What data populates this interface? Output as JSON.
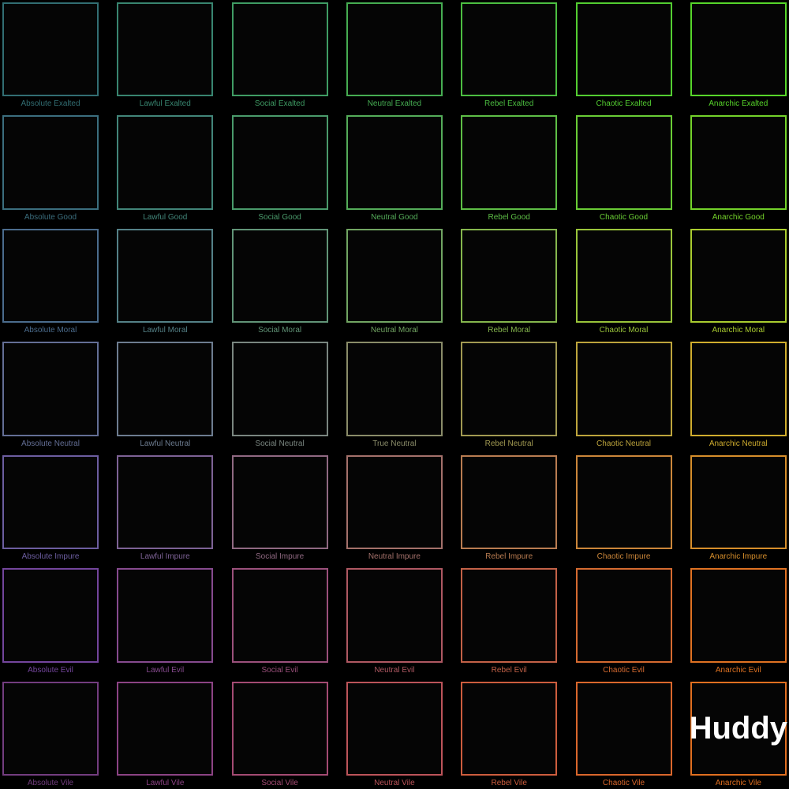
{
  "page": {
    "background": "#000000",
    "watermark_color": "#ffffff"
  },
  "grid": {
    "cells": [
      {
        "label": "Absolute Exalted",
        "color": "#326e73"
      },
      {
        "label": "Lawful Exalted",
        "color": "#388570"
      },
      {
        "label": "Social Exalted",
        "color": "#3f9c64"
      },
      {
        "label": "Neutral Exalted",
        "color": "#46ad52"
      },
      {
        "label": "Rebel Exalted",
        "color": "#4cbe41"
      },
      {
        "label": "Chaotic Exalted",
        "color": "#53cd31"
      },
      {
        "label": "Anarchic Exalted",
        "color": "#57d62a"
      },
      {
        "label": "Absolute Good",
        "color": "#3b6e7e"
      },
      {
        "label": "Lawful Good",
        "color": "#428579"
      },
      {
        "label": "Social Good",
        "color": "#4a9a6b"
      },
      {
        "label": "Neutral Good",
        "color": "#54ac59"
      },
      {
        "label": "Rebel Good",
        "color": "#5ebe46"
      },
      {
        "label": "Chaotic Good",
        "color": "#69cc35"
      },
      {
        "label": "Anarchic Good",
        "color": "#74d22a"
      },
      {
        "label": "Absolute Moral",
        "color": "#4b6c8d"
      },
      {
        "label": "Lawful Moral",
        "color": "#548187"
      },
      {
        "label": "Social Moral",
        "color": "#619477"
      },
      {
        "label": "Neutral Moral",
        "color": "#71a562"
      },
      {
        "label": "Rebel Moral",
        "color": "#85b64d"
      },
      {
        "label": "Chaotic Moral",
        "color": "#99c43a"
      },
      {
        "label": "Anarchic Moral",
        "color": "#aacc2f"
      },
      {
        "label": "Absolute Neutral",
        "color": "#646f96"
      },
      {
        "label": "Lawful Neutral",
        "color": "#6d7c90"
      },
      {
        "label": "Social Neutral",
        "color": "#7a8680"
      },
      {
        "label": "True Neutral",
        "color": "#8a8c69"
      },
      {
        "label": "Rebel Neutral",
        "color": "#a29a52"
      },
      {
        "label": "Chaotic Neutral",
        "color": "#bda43c"
      },
      {
        "label": "Anarchic Neutral",
        "color": "#d0ad2e"
      },
      {
        "label": "Absolute Impure",
        "color": "#6c5da0"
      },
      {
        "label": "Lawful Impure",
        "color": "#7d6295"
      },
      {
        "label": "Social Impure",
        "color": "#906982"
      },
      {
        "label": "Neutral Impure",
        "color": "#a4716b"
      },
      {
        "label": "Rebel Impure",
        "color": "#b97c51"
      },
      {
        "label": "Chaotic Impure",
        "color": "#cb863a"
      },
      {
        "label": "Anarchic Impure",
        "color": "#d68e2b"
      },
      {
        "label": "Absolute Evil",
        "color": "#73459c"
      },
      {
        "label": "Lawful Evil",
        "color": "#864a8e"
      },
      {
        "label": "Social Evil",
        "color": "#9b507b"
      },
      {
        "label": "Neutral Evil",
        "color": "#af5862"
      },
      {
        "label": "Rebel Evil",
        "color": "#c36147"
      },
      {
        "label": "Chaotic Evil",
        "color": "#d56a30"
      },
      {
        "label": "Anarchic Evil",
        "color": "#e07222"
      },
      {
        "label": "Absolute Vile",
        "color": "#733d7f"
      },
      {
        "label": "Lawful Vile",
        "color": "#8c4384"
      },
      {
        "label": "Social Vile",
        "color": "#a44b73"
      },
      {
        "label": "Neutral Vile",
        "color": "#bc545a"
      },
      {
        "label": "Rebel Vile",
        "color": "#cd5d3e"
      },
      {
        "label": "Chaotic Vile",
        "color": "#da672c"
      },
      {
        "label": "Anarchic Vile",
        "color": "#e06f20",
        "overlay_text": "Huddy"
      }
    ]
  }
}
